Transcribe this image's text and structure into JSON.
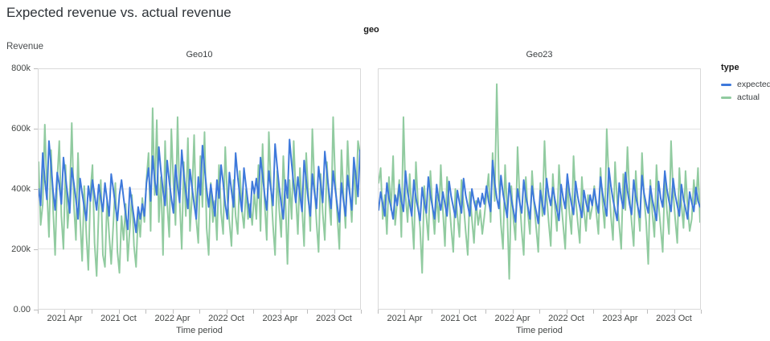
{
  "title": "Expected revenue vs. actual revenue",
  "facet_title": "geo",
  "y_axis": {
    "title": "Revenue",
    "tick_labels": [
      "800k",
      "600k",
      "400k",
      "200k",
      "0.00"
    ],
    "tick_values_k": [
      800,
      600,
      400,
      200,
      0
    ]
  },
  "x_axis": {
    "title": "Time period",
    "tick_labels": [
      "2021 Apr",
      "2021 Oct",
      "2022 Apr",
      "2022 Oct",
      "2023 Apr",
      "2023 Oct"
    ],
    "label_month_offsets": [
      3,
      9,
      15,
      21,
      27,
      33
    ],
    "minor_tick_month_offsets": [
      0,
      3,
      6,
      9,
      12,
      15,
      18,
      21,
      24,
      27,
      30,
      33,
      36
    ],
    "domain_months": 36,
    "domain": [
      "2021-01",
      "2024-01"
    ]
  },
  "legend": {
    "title": "type",
    "items": [
      {
        "label": "expected",
        "color": "#3e79db"
      },
      {
        "label": "actual",
        "color": "#91cba0"
      }
    ]
  },
  "colors": {
    "expected_line": "#3e79db",
    "actual_line": "#91cba0",
    "gridline": "#e3e3e3",
    "panel_border": "#d9d9d9",
    "tick": "#bdbdbd",
    "text_gray": "#444746"
  },
  "chart_data": [
    {
      "type": "line",
      "panel": "Geo10",
      "x_start": "2021-01-03",
      "x_step_days": 7,
      "ylim_k": [
        0,
        800
      ],
      "gridlines_k": [
        600,
        400,
        200
      ],
      "values_unit": "thousands of revenue (k)",
      "series": [
        {
          "name": "expected",
          "color": "#3e79db",
          "values": [
            400,
            345,
            520,
            430,
            365,
            560,
            480,
            390,
            330,
            455,
            415,
            350,
            505,
            440,
            380,
            320,
            470,
            420,
            365,
            300,
            435,
            385,
            340,
            295,
            410,
            360,
            430,
            380,
            330,
            415,
            370,
            325,
            420,
            365,
            310,
            450,
            400,
            345,
            295,
            380,
            430,
            370,
            315,
            265,
            405,
            355,
            305,
            255,
            340,
            300,
            350,
            310,
            420,
            470,
            360,
            510,
            430,
            380,
            540,
            460,
            395,
            345,
            495,
            425,
            370,
            320,
            480,
            410,
            355,
            530,
            450,
            390,
            335,
            465,
            405,
            350,
            300,
            440,
            380,
            545,
            470,
            400,
            340,
            415,
            360,
            310,
            430,
            370,
            480,
            420,
            350,
            300,
            455,
            395,
            340,
            520,
            440,
            380,
            325,
            470,
            410,
            355,
            305,
            425,
            385,
            435,
            370,
            505,
            445,
            380,
            330,
            460,
            400,
            345,
            550,
            475,
            405,
            350,
            300,
            430,
            370,
            565,
            485,
            415,
            355,
            440,
            380,
            325,
            495,
            430,
            365,
            310,
            450,
            390,
            335,
            475,
            415,
            355,
            525,
            455,
            390,
            335,
            460,
            400,
            345,
            290,
            420,
            360,
            310,
            445,
            385,
            330,
            505,
            440,
            375,
            530
          ]
        },
        {
          "name": "actual",
          "color": "#91cba0",
          "values": [
            490,
            280,
            350,
            615,
            400,
            240,
            530,
            330,
            180,
            430,
            560,
            310,
            200,
            480,
            270,
            370,
            620,
            350,
            230,
            520,
            300,
            160,
            410,
            250,
            130,
            390,
            480,
            220,
            110,
            330,
            430,
            180,
            140,
            360,
            250,
            150,
            280,
            420,
            190,
            120,
            310,
            230,
            350,
            160,
            270,
            380,
            210,
            140,
            320,
            240,
            370,
            290,
            430,
            520,
            260,
            670,
            380,
            630,
            290,
            440,
            180,
            560,
            350,
            240,
            600,
            420,
            280,
            640,
            360,
            200,
            490,
            310,
            570,
            260,
            380,
            580,
            300,
            220,
            510,
            340,
            590,
            270,
            180,
            420,
            290,
            360,
            230,
            480,
            320,
            250,
            540,
            370,
            290,
            210,
            430,
            310,
            250,
            460,
            330,
            270,
            400,
            300,
            350,
            280,
            390,
            300,
            480,
            260,
            550,
            350,
            230,
            590,
            410,
            280,
            180,
            460,
            330,
            240,
            510,
            370,
            150,
            430,
            300,
            560,
            380,
            250,
            470,
            340,
            210,
            520,
            390,
            260,
            600,
            420,
            290,
            190,
            450,
            320,
            230,
            490,
            360,
            280,
            640,
            430,
            310,
            200,
            530,
            380,
            270,
            560,
            400,
            290,
            480,
            350,
            560,
            520
          ]
        }
      ]
    },
    {
      "type": "line",
      "panel": "Geo23",
      "x_start": "2021-01-03",
      "x_step_days": 7,
      "ylim_k": [
        0,
        800
      ],
      "gridlines_k": [
        600,
        400,
        200
      ],
      "values_unit": "thousands of revenue (k)",
      "series": [
        {
          "name": "expected",
          "color": "#3e79db",
          "values": [
            330,
            390,
            350,
            310,
            420,
            370,
            340,
            300,
            380,
            345,
            415,
            360,
            325,
            460,
            390,
            350,
            310,
            430,
            370,
            335,
            295,
            405,
            355,
            320,
            440,
            380,
            340,
            300,
            415,
            365,
            330,
            390,
            350,
            310,
            425,
            375,
            340,
            305,
            395,
            355,
            320,
            435,
            380,
            345,
            310,
            400,
            360,
            330,
            370,
            340,
            385,
            350,
            410,
            360,
            325,
            495,
            420,
            370,
            335,
            445,
            385,
            345,
            305,
            420,
            365,
            330,
            290,
            400,
            355,
            320,
            430,
            375,
            340,
            300,
            410,
            360,
            325,
            285,
            395,
            350,
            315,
            435,
            380,
            345,
            405,
            365,
            330,
            295,
            415,
            370,
            335,
            450,
            390,
            350,
            315,
            425,
            375,
            340,
            305,
            395,
            355,
            325,
            380,
            345,
            400,
            355,
            320,
            440,
            385,
            345,
            310,
            470,
            410,
            365,
            330,
            295,
            420,
            370,
            335,
            455,
            395,
            350,
            315,
            430,
            375,
            340,
            305,
            445,
            385,
            350,
            320,
            410,
            365,
            330,
            295,
            425,
            370,
            340,
            460,
            400,
            360,
            325,
            435,
            380,
            345,
            310,
            415,
            365,
            335,
            300,
            390,
            355,
            325,
            405,
            360,
            340
          ]
        },
        {
          "name": "actual",
          "color": "#91cba0",
          "values": [
            420,
            470,
            300,
            380,
            250,
            440,
            330,
            510,
            280,
            360,
            430,
            240,
            640,
            380,
            290,
            450,
            320,
            200,
            490,
            350,
            270,
            120,
            410,
            310,
            230,
            460,
            340,
            250,
            380,
            290,
            480,
            330,
            210,
            440,
            360,
            270,
            190,
            400,
            310,
            240,
            430,
            350,
            260,
            180,
            390,
            300,
            220,
            360,
            280,
            330,
            250,
            310,
            380,
            450,
            290,
            520,
            360,
            750,
            430,
            280,
            200,
            480,
            330,
            100,
            410,
            300,
            230,
            540,
            370,
            260,
            180,
            440,
            320,
            250,
            460,
            350,
            270,
            190,
            420,
            310,
            560,
            380,
            290,
            210,
            450,
            340,
            260,
            480,
            360,
            280,
            200,
            430,
            320,
            250,
            510,
            370,
            290,
            220,
            440,
            330,
            260,
            380,
            300,
            340,
            410,
            320,
            250,
            470,
            350,
            270,
            600,
            430,
            310,
            230,
            490,
            360,
            280,
            200,
            450,
            330,
            540,
            380,
            290,
            210,
            460,
            340,
            260,
            520,
            370,
            290,
            150,
            430,
            320,
            240,
            480,
            350,
            270,
            190,
            440,
            330,
            250,
            560,
            390,
            300,
            220,
            470,
            350,
            270,
            460,
            340,
            260,
            300,
            430,
            350,
            470,
            290
          ]
        }
      ]
    }
  ]
}
